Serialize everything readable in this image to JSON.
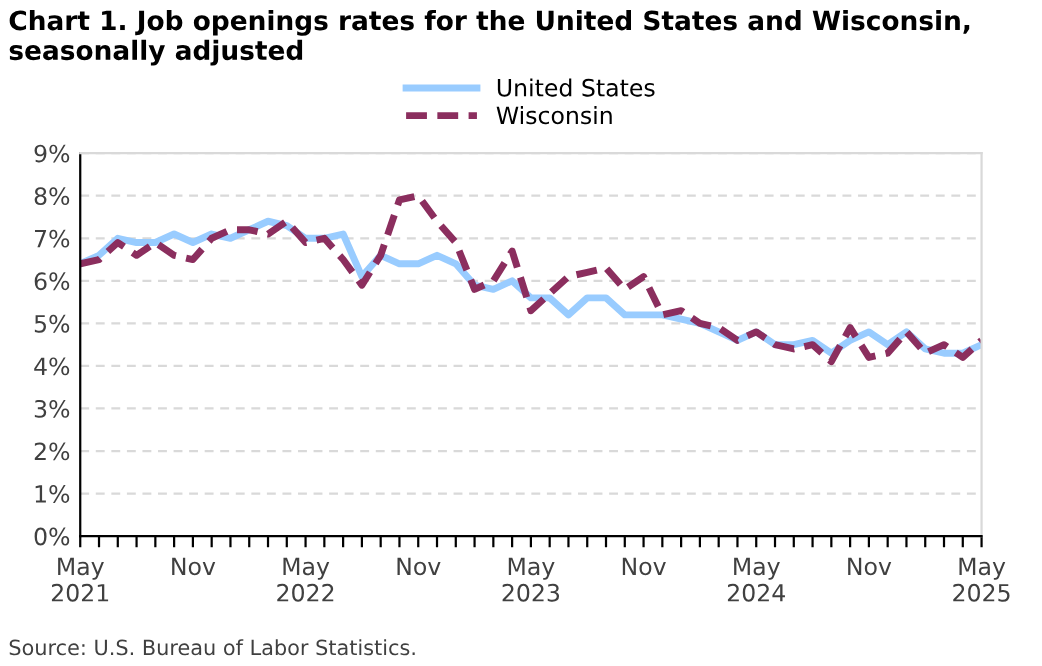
{
  "chart_data": {
    "type": "line",
    "title": "Chart 1. Job openings rates for the United States and Wisconsin, seasonally adjusted",
    "categories": [
      "May\n2021",
      null,
      null,
      null,
      null,
      null,
      "Nov",
      null,
      null,
      null,
      null,
      null,
      "May\n2022",
      null,
      null,
      null,
      null,
      null,
      "Nov",
      null,
      null,
      null,
      null,
      null,
      "May\n2023",
      null,
      null,
      null,
      null,
      null,
      "Nov",
      null,
      null,
      null,
      null,
      null,
      "May\n2024",
      null,
      null,
      null,
      null,
      null,
      "Nov",
      null,
      null,
      null,
      null,
      null,
      "May\n2025"
    ],
    "series": [
      {
        "name": "United States",
        "color": "#99ccff",
        "line_style": "solid",
        "values": [
          6.4,
          6.6,
          7.0,
          6.9,
          6.9,
          7.1,
          6.9,
          7.1,
          7.0,
          7.2,
          7.4,
          7.3,
          7.0,
          7.0,
          7.1,
          6.1,
          6.6,
          6.4,
          6.4,
          6.6,
          6.4,
          5.9,
          5.8,
          6.0,
          5.6,
          5.6,
          5.2,
          5.6,
          5.6,
          5.2,
          5.2,
          5.2,
          5.1,
          5.0,
          4.8,
          4.6,
          4.8,
          4.5,
          4.5,
          4.6,
          4.3,
          4.6,
          4.8,
          4.5,
          4.8,
          4.4,
          4.3,
          4.3,
          4.5
        ]
      },
      {
        "name": "Wisconsin",
        "color": "#8b2e5e",
        "line_style": "dashed",
        "values": [
          6.4,
          6.5,
          6.9,
          6.6,
          6.9,
          6.6,
          6.5,
          7.0,
          7.2,
          7.2,
          7.1,
          7.4,
          6.9,
          7.0,
          6.5,
          5.9,
          6.6,
          7.9,
          8.0,
          7.4,
          6.9,
          5.8,
          6.0,
          6.7,
          5.3,
          5.7,
          6.1,
          6.2,
          6.3,
          5.8,
          6.1,
          5.2,
          5.3,
          5.0,
          4.9,
          4.6,
          4.8,
          4.5,
          4.4,
          4.5,
          4.1,
          4.9,
          4.2,
          4.3,
          4.8,
          4.3,
          4.5,
          4.2,
          4.6
        ]
      }
    ],
    "ylim": [
      0,
      9
    ],
    "yticks": [
      {
        "value": 0,
        "label": "0%"
      },
      {
        "value": 1,
        "label": "1%"
      },
      {
        "value": 2,
        "label": "2%"
      },
      {
        "value": 3,
        "label": "3%"
      },
      {
        "value": 4,
        "label": "4%"
      },
      {
        "value": 5,
        "label": "5%"
      },
      {
        "value": 6,
        "label": "6%"
      },
      {
        "value": 7,
        "label": "7%"
      },
      {
        "value": 8,
        "label": "8%"
      },
      {
        "value": 9,
        "label": "9%"
      }
    ],
    "grid": "y",
    "legend": "top",
    "marker": "none",
    "annotations": [
      "Source: U.S. Bureau of Labor Statistics."
    ]
  }
}
